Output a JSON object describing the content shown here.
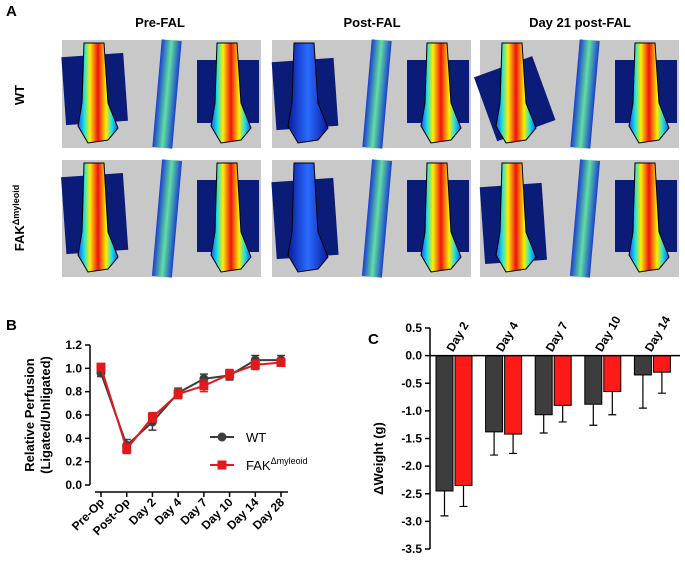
{
  "panel_a": {
    "label": "A",
    "columns": [
      "Pre-FAL",
      "Post-FAL",
      "Day 21 post-FAL"
    ],
    "rows": [
      {
        "text": "WT"
      },
      {
        "text": "FAK",
        "sup": "Δmyleoid"
      }
    ]
  },
  "chart_data": [
    {
      "type": "line",
      "panel_label": "B",
      "y_label": [
        "Relative Perfusion",
        "(Ligated/Unligated)"
      ],
      "categories": [
        "Pre-Op",
        "Post-Op",
        "Day 2",
        "Day 4",
        "Day 7",
        "Day 10",
        "Day 14",
        "Day 28"
      ],
      "ylim": [
        0,
        1.2
      ],
      "yticks": [
        {
          "value": 0,
          "label": "0.0"
        },
        0.2,
        0.4,
        0.6,
        0.8,
        {
          "value": 1,
          "label": "1.0"
        },
        1.2
      ],
      "series": [
        {
          "name": "WT",
          "color": "#3d3d3d",
          "marker": "circle",
          "values": [
            0.96,
            0.34,
            0.54,
            0.79,
            0.91,
            0.94,
            1.07,
            1.07
          ],
          "errors": [
            0.03,
            0.05,
            0.07,
            0.04,
            0.04,
            0.04,
            0.04,
            0.04
          ]
        },
        {
          "name": "FAK",
          "name_sup": "Δmyleoid",
          "color": "#e31a1c",
          "marker": "square",
          "values": [
            1.01,
            0.31,
            0.58,
            0.78,
            0.85,
            0.95,
            1.03,
            1.05
          ],
          "errors": [
            0.03,
            0.04,
            0.04,
            0.04,
            0.05,
            0.04,
            0.04,
            0.03
          ]
        }
      ]
    },
    {
      "type": "bar",
      "panel_label": "C",
      "y_label": "ΔWeight (g)",
      "categories": [
        "Day 2",
        "Day 4",
        "Day 7",
        "Day 10",
        "Day 14"
      ],
      "ylim": [
        -3.5,
        0.5
      ],
      "yticks": [
        0.5,
        {
          "value": 0,
          "label": "0.0"
        },
        -0.5,
        {
          "value": -1,
          "label": "-1.0"
        },
        -1.5,
        {
          "value": -2,
          "label": "-2.0"
        },
        -2.5,
        {
          "value": -3,
          "label": "-3.0"
        },
        -3.5
      ],
      "series": [
        {
          "color": "#3d3d3d",
          "values": [
            -2.45,
            -1.38,
            -1.07,
            -0.88,
            -0.35
          ],
          "errors": [
            0.45,
            0.42,
            0.33,
            0.38,
            0.6
          ]
        },
        {
          "color": "#ff1a1a",
          "values": [
            -2.35,
            -1.42,
            -0.9,
            -0.65,
            -0.3
          ],
          "errors": [
            0.38,
            0.35,
            0.3,
            0.42,
            0.38
          ]
        }
      ]
    }
  ]
}
